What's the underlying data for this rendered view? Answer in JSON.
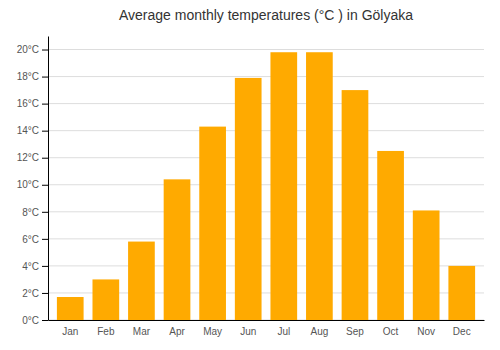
{
  "chart_data": {
    "type": "bar",
    "title": "Average monthly temperatures (°C ) in Gölyaka",
    "categories": [
      "Jan",
      "Feb",
      "Mar",
      "Apr",
      "May",
      "Jun",
      "Jul",
      "Aug",
      "Sep",
      "Oct",
      "Nov",
      "Dec"
    ],
    "values": [
      1.7,
      3.0,
      5.8,
      10.4,
      14.3,
      17.9,
      19.8,
      19.8,
      17.0,
      12.5,
      8.1,
      4.0
    ],
    "color": "#FFAA00",
    "ylim": [
      0,
      21
    ],
    "yticks": [
      {
        "value": 0,
        "label": "0°C"
      },
      {
        "value": 2,
        "label": "2°C"
      },
      {
        "value": 4,
        "label": "4°C"
      },
      {
        "value": 6,
        "label": "6°C"
      },
      {
        "value": 8,
        "label": "8°C"
      },
      {
        "value": 10,
        "label": "10°C"
      },
      {
        "value": 12,
        "label": "12°C"
      },
      {
        "value": 14,
        "label": "14°C"
      },
      {
        "value": 16,
        "label": "16°C"
      },
      {
        "value": 18,
        "label": "18°C"
      },
      {
        "value": 20,
        "label": "20°C"
      }
    ],
    "grid": true
  }
}
